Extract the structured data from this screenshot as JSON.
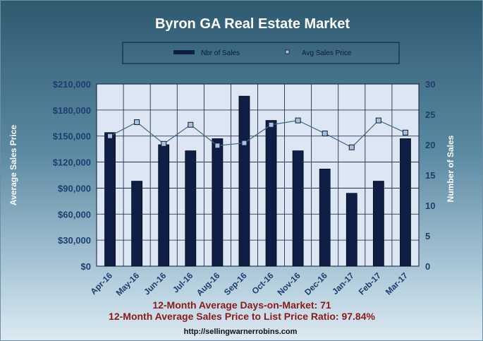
{
  "chart_data": {
    "title": "Byron GA Real Estate Market",
    "categories": [
      "Apr-16",
      "May-16",
      "Jun-16",
      "Jul-16",
      "Aug-16",
      "Sep-16",
      "Oct-16",
      "Nov-16",
      "Dec-16",
      "Jan-17",
      "Feb-17",
      "Mar-17"
    ],
    "series": [
      {
        "name": "Nbr of Sales",
        "type": "bar",
        "axis": "right",
        "values": [
          22,
          14,
          20,
          19,
          21,
          28,
          24,
          19,
          16,
          12,
          14,
          21
        ]
      },
      {
        "name": "Avg Sales Price",
        "type": "line",
        "axis": "left",
        "values": [
          150000,
          166000,
          141000,
          163000,
          139000,
          142000,
          163000,
          168000,
          153000,
          137000,
          168000,
          154000
        ]
      }
    ],
    "y_left": {
      "label": "Average Sales Price",
      "range": [
        0,
        210000
      ],
      "ticks": [
        "$0",
        "$30,000",
        "$60,000",
        "$90,000",
        "$120,000",
        "$150,000",
        "$180,000",
        "$210,000"
      ]
    },
    "y_right": {
      "label": "Number of Sales",
      "range": [
        0,
        30
      ],
      "ticks": [
        "0",
        "5",
        "10",
        "15",
        "20",
        "25",
        "30"
      ]
    },
    "legend_position": "top",
    "grid": true
  },
  "footer": {
    "line1": "12-Month Average Days-on-Market: 71",
    "line2": "12-Month Average Sales Price to List Price Ratio: 97.84%",
    "url": "http://sellingwarnerrobins.com"
  },
  "colors": {
    "bar": "#0e1e45",
    "line": "#3d6a80",
    "plot_bg": "#dde7f4",
    "axis_text": "#1c3f6e",
    "footer_text": "#8b1a1a"
  }
}
